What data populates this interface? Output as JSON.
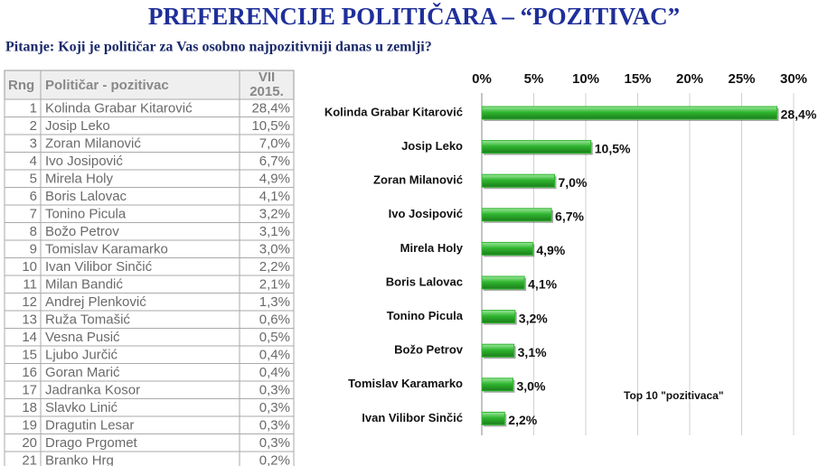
{
  "title": "PREFERENCIJE POLITIČARA – “POZITIVAC”",
  "question": "Pitanje: Koji je političar za Vas osobno najpozitivniji danas u zemlji?",
  "table": {
    "header": {
      "rank": "Rng",
      "name": "Političar - pozitivac",
      "period": [
        "VII",
        "2015."
      ]
    },
    "rows": [
      [
        1,
        "Kolinda Grabar Kitarović",
        "28,4%"
      ],
      [
        2,
        "Josip Leko",
        "10,5%"
      ],
      [
        3,
        "Zoran Milanović",
        "7,0%"
      ],
      [
        4,
        "Ivo Josipović",
        "6,7%"
      ],
      [
        5,
        "Mirela Holy",
        "4,9%"
      ],
      [
        6,
        "Boris Lalovac",
        "4,1%"
      ],
      [
        7,
        "Tonino Picula",
        "3,2%"
      ],
      [
        8,
        "Božo Petrov",
        "3,1%"
      ],
      [
        9,
        "Tomislav Karamarko",
        "3,0%"
      ],
      [
        10,
        "Ivan Vilibor Sinčić",
        "2,2%"
      ],
      [
        11,
        "Milan Bandić",
        "2,1%"
      ],
      [
        12,
        "Andrej Plenković",
        "1,3%"
      ],
      [
        13,
        "Ruža Tomašić",
        "0,6%"
      ],
      [
        14,
        "Vesna Pusić",
        "0,5%"
      ],
      [
        15,
        "Ljubo Jurčić",
        "0,4%"
      ],
      [
        16,
        "Goran Marić",
        "0,4%"
      ],
      [
        17,
        "Jadranka Kosor",
        "0,3%"
      ],
      [
        18,
        "Slavko Linić",
        "0,3%"
      ],
      [
        19,
        "Dragutin Lesar",
        "0,3%"
      ],
      [
        20,
        "Drago Prgomet",
        "0,3%"
      ],
      [
        21,
        "Branko Hrg",
        "0,2%"
      ]
    ]
  },
  "chart_data": {
    "type": "bar",
    "orientation": "horizontal",
    "categories": [
      "Kolinda Grabar Kitarović",
      "Josip Leko",
      "Zoran Milanović",
      "Ivo Josipović",
      "Mirela Holy",
      "Boris Lalovac",
      "Tonino Picula",
      "Božo Petrov",
      "Tomislav Karamarko",
      "Ivan Vilibor Sinčić"
    ],
    "values": [
      28.4,
      10.5,
      7.0,
      6.7,
      4.9,
      4.1,
      3.2,
      3.1,
      3.0,
      2.2
    ],
    "value_labels": [
      "28,4%",
      "10,5%",
      "7,0%",
      "6,7%",
      "4,9%",
      "4,1%",
      "3,2%",
      "3,1%",
      "3,0%",
      "2,2%"
    ],
    "color": "#2fb52f",
    "xlim": [
      0,
      30
    ],
    "xticks": [
      {
        "value": 0,
        "label": "0%"
      },
      {
        "value": 5,
        "label": "5%"
      },
      {
        "value": 10,
        "label": "10%"
      },
      {
        "value": 15,
        "label": "15%"
      },
      {
        "value": 20,
        "label": "20%"
      },
      {
        "value": 25,
        "label": "25%"
      },
      {
        "value": 30,
        "label": "30%"
      }
    ],
    "grid": true,
    "annotation": "Top 10 \"pozitivaca\""
  }
}
